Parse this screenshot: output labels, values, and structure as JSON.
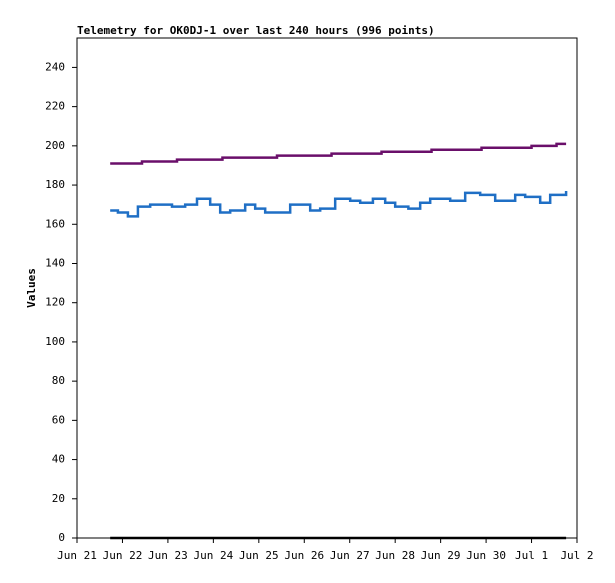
{
  "chart_data": {
    "type": "line",
    "title": "Telemetry for OK0DJ-1 over last 240 hours (996 points)",
    "ylabel": "Values",
    "drawstyle": "steps-post",
    "xlim": [
      0,
      11
    ],
    "xticks": [
      {
        "value": 0,
        "label": "Jun 21"
      },
      {
        "value": 1,
        "label": "Jun 22"
      },
      {
        "value": 2,
        "label": "Jun 23"
      },
      {
        "value": 3,
        "label": "Jun 24"
      },
      {
        "value": 4,
        "label": "Jun 25"
      },
      {
        "value": 5,
        "label": "Jun 26"
      },
      {
        "value": 6,
        "label": "Jun 27"
      },
      {
        "value": 7,
        "label": "Jun 28"
      },
      {
        "value": 8,
        "label": "Jun 29"
      },
      {
        "value": 9,
        "label": "Jun 30"
      },
      {
        "value": 10,
        "label": "Jul 1"
      },
      {
        "value": 11,
        "label": "Jul 2"
      }
    ],
    "ylim": [
      0,
      255
    ],
    "yticks": [
      0,
      20,
      40,
      60,
      80,
      100,
      120,
      140,
      160,
      180,
      200,
      220,
      240
    ],
    "series": [
      {
        "color": "#6a0f6a",
        "x": [
          0.73,
          1.43,
          2.2,
          3.2,
          4.4,
          5.6,
          6.7,
          7.8,
          8.9,
          10.0,
          10.55,
          10.76
        ],
        "values": [
          191,
          192,
          193,
          194,
          195,
          196,
          197,
          198,
          199,
          200,
          201,
          201
        ]
      },
      {
        "color": "#1f6fc5",
        "x": [
          0.73,
          0.9,
          1.12,
          1.34,
          1.61,
          1.83,
          2.09,
          2.38,
          2.64,
          2.93,
          3.15,
          3.37,
          3.7,
          3.92,
          4.14,
          4.36,
          4.69,
          4.91,
          5.13,
          5.35,
          5.68,
          6.01,
          6.23,
          6.51,
          6.78,
          7.0,
          7.29,
          7.55,
          7.77,
          8.21,
          8.54,
          8.87,
          9.2,
          9.64,
          9.86,
          10.19,
          10.41,
          10.76
        ],
        "values": [
          167,
          166,
          164,
          169,
          170,
          170,
          169,
          170,
          173,
          170,
          166,
          167,
          170,
          168,
          166,
          166,
          170,
          170,
          167,
          168,
          173,
          172,
          171,
          173,
          171,
          169,
          168,
          171,
          173,
          172,
          176,
          175,
          172,
          175,
          174,
          171,
          175,
          177
        ]
      },
      {
        "color": "#000000",
        "x": [
          0.73,
          10.76
        ],
        "values": [
          0,
          0
        ]
      }
    ]
  }
}
